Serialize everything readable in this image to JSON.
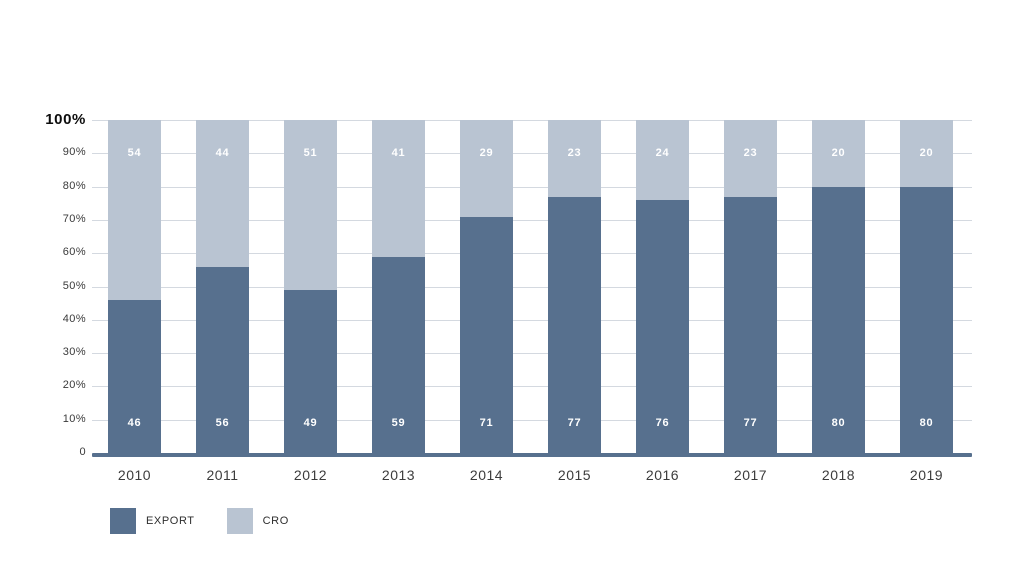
{
  "colors": {
    "export": "#57708E",
    "cro": "#B9C4D2",
    "gridline": "#D4D9E0",
    "baseline": "#57708E",
    "value_label": "#FFFFFF",
    "axis_text": "#3A3A3A"
  },
  "chart_data": {
    "type": "bar",
    "stacked": true,
    "title": "",
    "xlabel": "",
    "ylabel": "",
    "ylim": [
      0,
      100
    ],
    "grid": true,
    "legend_position": "bottom-left",
    "categories": [
      "2010",
      "2011",
      "2012",
      "2013",
      "2014",
      "2015",
      "2016",
      "2017",
      "2018",
      "2019"
    ],
    "series": [
      {
        "name": "EXPORT",
        "color_key": "export",
        "values": [
          46,
          56,
          49,
          59,
          71,
          77,
          76,
          77,
          80,
          80
        ]
      },
      {
        "name": "CRO",
        "color_key": "cro",
        "values": [
          54,
          44,
          51,
          41,
          29,
          23,
          24,
          23,
          20,
          20
        ]
      }
    ],
    "y_ticks": [
      "100%",
      "90%",
      "80%",
      "70%",
      "60%",
      "50%",
      "40%",
      "30%",
      "20%",
      "10%",
      "0"
    ]
  }
}
